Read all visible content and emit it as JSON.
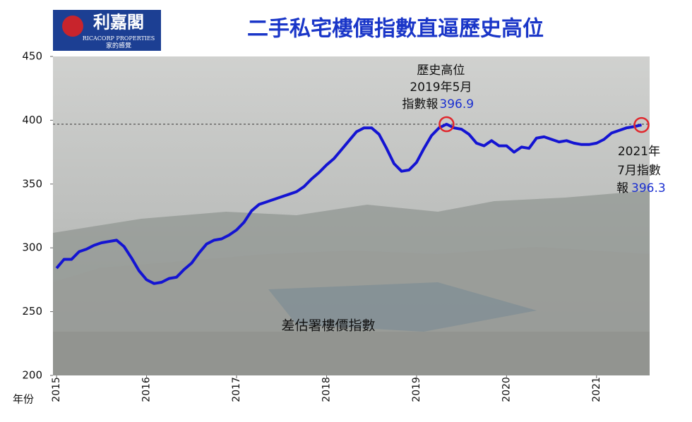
{
  "chart_data": {
    "type": "line",
    "title": "二手私宅樓價指數直逼歷史高位",
    "logo": {
      "name": "利嘉閣",
      "english": "RICACORP PROPERTIES",
      "slogan": "家的感覺"
    },
    "x_label": "年份",
    "x": [
      2015,
      2015.0833,
      2015.1667,
      2015.25,
      2015.3333,
      2015.4167,
      2015.5,
      2015.5833,
      2015.6667,
      2015.75,
      2015.8333,
      2015.9167,
      2016,
      2016.0833,
      2016.1667,
      2016.25,
      2016.3333,
      2016.4167,
      2016.5,
      2016.5833,
      2016.6667,
      2016.75,
      2016.8333,
      2016.9167,
      2017,
      2017.0833,
      2017.1667,
      2017.25,
      2017.3333,
      2017.4167,
      2017.5,
      2017.5833,
      2017.6667,
      2017.75,
      2017.8333,
      2017.9167,
      2018,
      2018.0833,
      2018.1667,
      2018.25,
      2018.3333,
      2018.4167,
      2018.5,
      2018.5833,
      2018.6667,
      2018.75,
      2018.8333,
      2018.9167,
      2019,
      2019.0833,
      2019.1667,
      2019.25,
      2019.3333,
      2019.4167,
      2019.5,
      2019.5833,
      2019.6667,
      2019.75,
      2019.8333,
      2019.9167,
      2020,
      2020.0833,
      2020.1667,
      2020.25,
      2020.3333,
      2020.4167,
      2020.5,
      2020.5833,
      2020.6667,
      2020.75,
      2020.8333,
      2020.9167,
      2021,
      2021.0833,
      2021.1667,
      2021.25,
      2021.3333,
      2021.4167,
      2021.5
    ],
    "series": [
      {
        "name": "差估署樓價指數",
        "color": "#1414d2",
        "values": [
          284,
          291,
          291,
          297,
          299,
          302,
          304,
          305,
          306,
          301,
          292,
          282,
          275,
          272,
          273,
          276,
          277,
          283,
          288,
          296,
          303,
          306,
          307,
          310,
          314,
          320,
          329,
          334,
          336,
          338,
          340,
          342,
          344,
          348,
          354,
          359,
          365,
          370,
          377,
          384,
          391,
          394,
          394,
          389,
          378,
          366,
          360,
          361,
          367,
          378,
          388,
          394,
          396.9,
          394,
          393,
          389,
          382,
          380,
          384,
          380,
          380,
          375,
          379,
          378,
          386,
          387,
          385,
          383,
          384,
          382,
          381,
          381,
          382,
          385,
          390,
          392,
          394,
          395,
          396.3
        ]
      }
    ],
    "annotations": [
      {
        "lines": [
          "歷史高位",
          "2019年5月",
          "指數報"
        ]
      },
      {
        "lines": [
          "2021年",
          "7月指數",
          "報"
        ]
      }
    ],
    "xlim": [
      2014.96,
      2021.59
    ],
    "ylim": [
      200,
      450
    ],
    "xticks": [
      2015,
      2016,
      2017,
      2018,
      2019,
      2020,
      2021
    ],
    "yticks": [
      200,
      250,
      300,
      350,
      400,
      450
    ]
  }
}
